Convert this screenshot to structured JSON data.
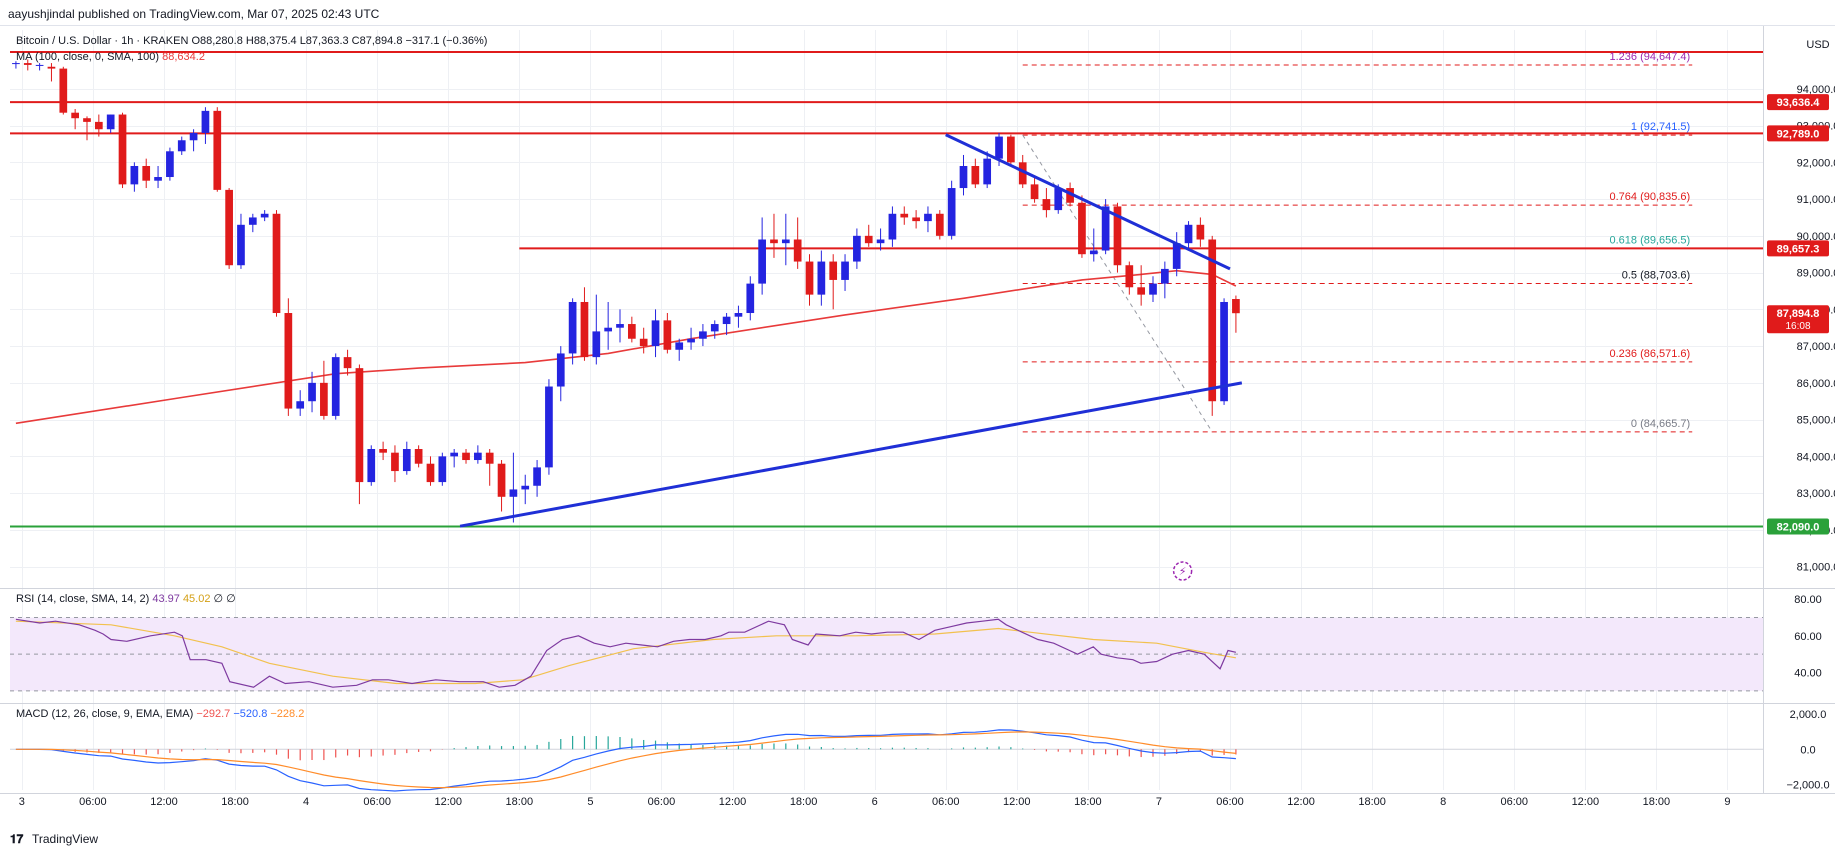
{
  "header": {
    "published": "aayushjindal published on TradingView.com, Mar 07, 2025 02:43 UTC"
  },
  "legend": {
    "symbol": "Bitcoin / U.S. Dollar · 1h · KRAKEN",
    "ohlc": "O88,280.8  H88,375.4  L87,363.3  C87,894.8  −317.1 (−0.36%)",
    "ma_label": "MA (100, close, 0, SMA, 100)",
    "ma_value": "88,634.2",
    "rsi_label": "RSI (14, close, SMA, 14, 2)",
    "rsi_v1": "43.97",
    "rsi_v2": "45.02",
    "rsi_v3": "∅ ∅",
    "macd_label": "MACD (12, 26, close, 9, EMA, EMA)",
    "macd_v1": "−292.7",
    "macd_v2": "−520.8",
    "macd_v3": "−228.2"
  },
  "currency": "USD",
  "brand": "TradingView",
  "colors": {
    "up": "#2424e0",
    "down": "#e01b1b",
    "ma": "#e83a3a",
    "rsi": "#7e3aa0",
    "rsi_ma": "#f2c14e",
    "macd": "#2962ff",
    "signal": "#ff8c2a",
    "trendline": "#1f2fd6",
    "support": "#2aa13a"
  },
  "chart_data": {
    "type": "candlestick",
    "price_axis": {
      "ylim": [
        80500,
        95600
      ],
      "ticks": [
        "81,000.0",
        "82,000.0",
        "83,000.0",
        "84,000.0",
        "85,000.0",
        "86,000.0",
        "87,000.0",
        "88,000.0",
        "89,000.0",
        "90,000.0",
        "91,000.0",
        "92,000.0",
        "93,000.0",
        "94,000.0"
      ]
    },
    "time_axis": {
      "start": "2025-03-02 23:00",
      "end": "2025-03-09 03:00",
      "ticks": [
        {
          "t": "2025-03-03 00:00",
          "label": "3"
        },
        {
          "t": "2025-03-03 06:00",
          "label": "06:00"
        },
        {
          "t": "2025-03-03 12:00",
          "label": "12:00"
        },
        {
          "t": "2025-03-03 18:00",
          "label": "18:00"
        },
        {
          "t": "2025-03-04 00:00",
          "label": "4"
        },
        {
          "t": "2025-03-04 06:00",
          "label": "06:00"
        },
        {
          "t": "2025-03-04 12:00",
          "label": "12:00"
        },
        {
          "t": "2025-03-04 18:00",
          "label": "18:00"
        },
        {
          "t": "2025-03-05 00:00",
          "label": "5"
        },
        {
          "t": "2025-03-05 06:00",
          "label": "06:00"
        },
        {
          "t": "2025-03-05 12:00",
          "label": "12:00"
        },
        {
          "t": "2025-03-05 18:00",
          "label": "18:00"
        },
        {
          "t": "2025-03-06 00:00",
          "label": "6"
        },
        {
          "t": "2025-03-06 06:00",
          "label": "06:00"
        },
        {
          "t": "2025-03-06 12:00",
          "label": "12:00"
        },
        {
          "t": "2025-03-06 18:00",
          "label": "18:00"
        },
        {
          "t": "2025-03-07 00:00",
          "label": "7"
        },
        {
          "t": "2025-03-07 06:00",
          "label": "06:00"
        },
        {
          "t": "2025-03-07 12:00",
          "label": "12:00"
        },
        {
          "t": "2025-03-07 18:00",
          "label": "18:00"
        },
        {
          "t": "2025-03-08 00:00",
          "label": "8"
        },
        {
          "t": "2025-03-08 06:00",
          "label": "06:00"
        },
        {
          "t": "2025-03-08 12:00",
          "label": "12:00"
        },
        {
          "t": "2025-03-08 18:00",
          "label": "18:00"
        },
        {
          "t": "2025-03-09 00:00",
          "label": "9"
        }
      ]
    },
    "candles_start": "2025-03-02 23:00",
    "candles": [
      [
        94700,
        94750,
        94550,
        94700
      ],
      [
        94700,
        94800,
        94500,
        94650
      ],
      [
        94650,
        94700,
        94500,
        94650
      ],
      [
        94600,
        94700,
        94200,
        94550
      ],
      [
        94550,
        94600,
        93300,
        93350
      ],
      [
        93350,
        93450,
        92900,
        93200
      ],
      [
        93200,
        93250,
        92600,
        93100
      ],
      [
        93100,
        93300,
        92700,
        92900
      ],
      [
        92900,
        93300,
        92800,
        93300
      ],
      [
        93300,
        93350,
        91300,
        91400
      ],
      [
        91400,
        92000,
        91200,
        91900
      ],
      [
        91900,
        92100,
        91300,
        91500
      ],
      [
        91500,
        91900,
        91300,
        91600
      ],
      [
        91600,
        92400,
        91500,
        92300
      ],
      [
        92300,
        92700,
        92200,
        92600
      ],
      [
        92600,
        92900,
        92300,
        92800
      ],
      [
        92800,
        93500,
        92500,
        93400
      ],
      [
        93400,
        93500,
        91200,
        91250
      ],
      [
        91250,
        91300,
        89100,
        89200
      ],
      [
        89200,
        90600,
        89100,
        90300
      ],
      [
        90300,
        90600,
        90100,
        90500
      ],
      [
        90500,
        90700,
        90400,
        90600
      ],
      [
        90600,
        90700,
        87800,
        87900
      ],
      [
        87900,
        88300,
        85100,
        85300
      ],
      [
        85300,
        85800,
        85100,
        85500
      ],
      [
        85500,
        86300,
        85200,
        86000
      ],
      [
        86000,
        86600,
        85000,
        85100
      ],
      [
        85100,
        86800,
        85000,
        86700
      ],
      [
        86700,
        86900,
        86200,
        86400
      ],
      [
        86400,
        86500,
        82700,
        83300
      ],
      [
        83300,
        84300,
        83200,
        84200
      ],
      [
        84200,
        84400,
        83900,
        84100
      ],
      [
        84100,
        84300,
        83300,
        83600
      ],
      [
        83600,
        84400,
        83500,
        84200
      ],
      [
        84200,
        84300,
        83700,
        83800
      ],
      [
        83800,
        84000,
        83200,
        83300
      ],
      [
        83300,
        84100,
        83200,
        84000
      ],
      [
        84000,
        84200,
        83700,
        84100
      ],
      [
        84100,
        84200,
        83800,
        83900
      ],
      [
        83900,
        84300,
        83800,
        84100
      ],
      [
        84100,
        84200,
        83200,
        83800
      ],
      [
        83800,
        83900,
        82500,
        82900
      ],
      [
        82900,
        84100,
        82200,
        83100
      ],
      [
        83100,
        83500,
        82700,
        83200
      ],
      [
        83200,
        83900,
        82900,
        83700
      ],
      [
        83700,
        86100,
        83500,
        85900
      ],
      [
        85900,
        87000,
        85500,
        86800
      ],
      [
        86800,
        88300,
        86500,
        88200
      ],
      [
        88200,
        88600,
        86600,
        86700
      ],
      [
        86700,
        88400,
        86500,
        87400
      ],
      [
        87400,
        88200,
        86900,
        87500
      ],
      [
        87500,
        88000,
        87100,
        87600
      ],
      [
        87600,
        87800,
        87100,
        87200
      ],
      [
        87200,
        87500,
        86800,
        87000
      ],
      [
        87000,
        88000,
        86700,
        87700
      ],
      [
        87700,
        87900,
        86800,
        86900
      ],
      [
        86900,
        87200,
        86600,
        87100
      ],
      [
        87100,
        87500,
        86900,
        87200
      ],
      [
        87200,
        87600,
        87000,
        87400
      ],
      [
        87400,
        87700,
        87200,
        87600
      ],
      [
        87600,
        87900,
        87300,
        87800
      ],
      [
        87800,
        88100,
        87500,
        87900
      ],
      [
        87900,
        88900,
        87700,
        88700
      ],
      [
        88700,
        90500,
        88400,
        89900
      ],
      [
        89900,
        90600,
        89400,
        89800
      ],
      [
        89800,
        90600,
        89200,
        89900
      ],
      [
        89900,
        90500,
        89100,
        89300
      ],
      [
        89300,
        89500,
        88100,
        88400
      ],
      [
        88400,
        89600,
        88100,
        89300
      ],
      [
        89300,
        89500,
        88000,
        88800
      ],
      [
        88800,
        89500,
        88500,
        89300
      ],
      [
        89300,
        90200,
        89100,
        90000
      ],
      [
        90000,
        90300,
        89700,
        89800
      ],
      [
        89800,
        90200,
        89600,
        89900
      ],
      [
        89900,
        90800,
        89700,
        90600
      ],
      [
        90600,
        90800,
        90300,
        90500
      ],
      [
        90500,
        90700,
        90200,
        90400
      ],
      [
        90400,
        90800,
        90100,
        90600
      ],
      [
        90600,
        90700,
        89900,
        90000
      ],
      [
        90000,
        91500,
        89900,
        91300
      ],
      [
        91300,
        92200,
        91100,
        91900
      ],
      [
        91900,
        92100,
        91300,
        91400
      ],
      [
        91400,
        92300,
        91300,
        92100
      ],
      [
        92100,
        92800,
        91900,
        92700
      ],
      [
        92700,
        92750,
        91950,
        92000
      ],
      [
        92000,
        92200,
        91300,
        91400
      ],
      [
        91400,
        91600,
        90900,
        91000
      ],
      [
        91000,
        91300,
        90500,
        90700
      ],
      [
        90700,
        91400,
        90600,
        91300
      ],
      [
        91300,
        91450,
        90800,
        90900
      ],
      [
        90900,
        91100,
        89400,
        89500
      ],
      [
        89500,
        90200,
        89300,
        89600
      ],
      [
        89600,
        91000,
        89500,
        90800
      ],
      [
        90800,
        90900,
        89000,
        89200
      ],
      [
        89200,
        89300,
        88400,
        88600
      ],
      [
        88600,
        89200,
        88100,
        88400
      ],
      [
        88400,
        88900,
        88200,
        88700
      ],
      [
        88700,
        89300,
        88300,
        89100
      ],
      [
        89100,
        90100,
        88900,
        89800
      ],
      [
        89800,
        90400,
        89600,
        90300
      ],
      [
        90300,
        90500,
        89700,
        89900
      ],
      [
        89900,
        90000,
        85100,
        85500
      ],
      [
        85500,
        88300,
        85400,
        88200
      ],
      [
        88280.8,
        88375.4,
        87363.3,
        87894.8
      ]
    ],
    "ma100": [
      [
        0,
        84900
      ],
      [
        14,
        85600
      ],
      [
        27,
        86250
      ],
      [
        34,
        86400
      ],
      [
        43,
        86550
      ],
      [
        50,
        86800
      ],
      [
        57,
        87200
      ],
      [
        70,
        87850
      ],
      [
        80,
        88300
      ],
      [
        90,
        88800
      ],
      [
        95,
        88950
      ],
      [
        98,
        89050
      ],
      [
        101,
        88950
      ],
      [
        103,
        88634.2
      ]
    ],
    "horizontal_levels": [
      {
        "price": 95000,
        "label": ""
      },
      {
        "price": 93636.4,
        "label": "93,636.4"
      },
      {
        "price": 92789.0,
        "label": "92,789.0"
      },
      {
        "price": 89657.3,
        "label": "89,657.3"
      },
      {
        "price": 82090.0,
        "label": "82,090.0"
      }
    ],
    "last_price": {
      "price": 87894.8,
      "label": "87,894.8",
      "countdown": "16:08"
    },
    "fibonacci": {
      "from_index": 85,
      "to_index": 101,
      "levels": [
        {
          "ratio": "1.236",
          "price": 94647.4,
          "label": "1.236 (94,647.4)",
          "color": "#9c27b0"
        },
        {
          "ratio": "1",
          "price": 92741.5,
          "label": "1 (92,741.5)",
          "color": "#2962ff"
        },
        {
          "ratio": "0.764",
          "price": 90835.6,
          "label": "0.764 (90,835.6)",
          "color": "#e01b1b"
        },
        {
          "ratio": "0.618",
          "price": 89656.5,
          "label": "0.618 (89,656.5)",
          "color": "#26a69a"
        },
        {
          "ratio": "0.5",
          "price": 88703.6,
          "label": "0.5 (88,703.6)",
          "color": "#131722"
        },
        {
          "ratio": "0.236",
          "price": 86571.6,
          "label": "0.236 (86,571.6)",
          "color": "#e01b1b"
        },
        {
          "ratio": "0",
          "price": 84665.7,
          "label": "0 (84,665.7)",
          "color": "#787b86"
        }
      ]
    },
    "trendlines": [
      {
        "from": [
          "2025-03-04 13:00",
          82100
        ],
        "to": [
          "2025-03-07 07:00",
          86000
        ]
      },
      {
        "from": [
          "2025-03-06 06:00",
          92750
        ],
        "to": [
          "2025-03-07 06:00",
          89100
        ]
      }
    ],
    "rsi": {
      "ylim": [
        25,
        85
      ],
      "ticks": [
        "40.00",
        "60.00",
        "80.00"
      ],
      "band": [
        30,
        70
      ],
      "values": [
        [
          0,
          69
        ],
        [
          3,
          67
        ],
        [
          5,
          68
        ],
        [
          8,
          66
        ],
        [
          10,
          63
        ],
        [
          11,
          61
        ],
        [
          12,
          58
        ],
        [
          14,
          57
        ],
        [
          17,
          60
        ],
        [
          20,
          62
        ],
        [
          21,
          60
        ],
        [
          22,
          47
        ],
        [
          24,
          47
        ],
        [
          26,
          45
        ],
        [
          27,
          35
        ],
        [
          30,
          32
        ],
        [
          32,
          38
        ],
        [
          34,
          34
        ],
        [
          37,
          35
        ],
        [
          40,
          32
        ],
        [
          43,
          33
        ],
        [
          45,
          36
        ],
        [
          47,
          36
        ],
        [
          50,
          34
        ],
        [
          53,
          36
        ],
        [
          56,
          35
        ],
        [
          59,
          35
        ],
        [
          61,
          32
        ],
        [
          63,
          33
        ],
        [
          65,
          38
        ],
        [
          67,
          52
        ],
        [
          69,
          58
        ],
        [
          71,
          60
        ],
        [
          73,
          56
        ],
        [
          75,
          54
        ],
        [
          77,
          56
        ],
        [
          79,
          55
        ],
        [
          81,
          54
        ],
        [
          83,
          57
        ],
        [
          85,
          58
        ],
        [
          87,
          58
        ],
        [
          89,
          60
        ],
        [
          90,
          62
        ],
        [
          92,
          62
        ],
        [
          95,
          68
        ],
        [
          97,
          66
        ],
        [
          98,
          58
        ],
        [
          100,
          55
        ],
        [
          101,
          61
        ],
        [
          104,
          60
        ],
        [
          106,
          62
        ],
        [
          108,
          61
        ],
        [
          110,
          62
        ],
        [
          112,
          62
        ],
        [
          114,
          58
        ],
        [
          116,
          63
        ],
        [
          118,
          65
        ],
        [
          120,
          67
        ],
        [
          122,
          68
        ],
        [
          124,
          69
        ],
        [
          125,
          66
        ],
        [
          127,
          62
        ],
        [
          129,
          58
        ],
        [
          131,
          56
        ],
        [
          133,
          52
        ],
        [
          134,
          50
        ],
        [
          136,
          54
        ],
        [
          137,
          50
        ],
        [
          139,
          48
        ],
        [
          141,
          47
        ],
        [
          142,
          45
        ],
        [
          144,
          46
        ],
        [
          146,
          50
        ],
        [
          148,
          52
        ],
        [
          150,
          50
        ],
        [
          152,
          42
        ],
        [
          153,
          52
        ],
        [
          154,
          51
        ]
      ],
      "ma": [
        [
          0,
          68
        ],
        [
          12,
          66
        ],
        [
          20,
          60
        ],
        [
          26,
          54
        ],
        [
          32,
          45
        ],
        [
          40,
          38
        ],
        [
          48,
          34
        ],
        [
          58,
          34
        ],
        [
          64,
          36
        ],
        [
          70,
          44
        ],
        [
          78,
          53
        ],
        [
          88,
          58
        ],
        [
          96,
          60
        ],
        [
          106,
          60
        ],
        [
          116,
          61
        ],
        [
          124,
          64
        ],
        [
          128,
          62
        ],
        [
          136,
          58
        ],
        [
          144,
          56
        ],
        [
          150,
          51
        ],
        [
          154,
          48
        ]
      ]
    },
    "macd": {
      "ylim": [
        -2300,
        2500
      ],
      "ticks": [
        "−2,000.0",
        "0.0",
        "2,000.0"
      ]
    }
  }
}
